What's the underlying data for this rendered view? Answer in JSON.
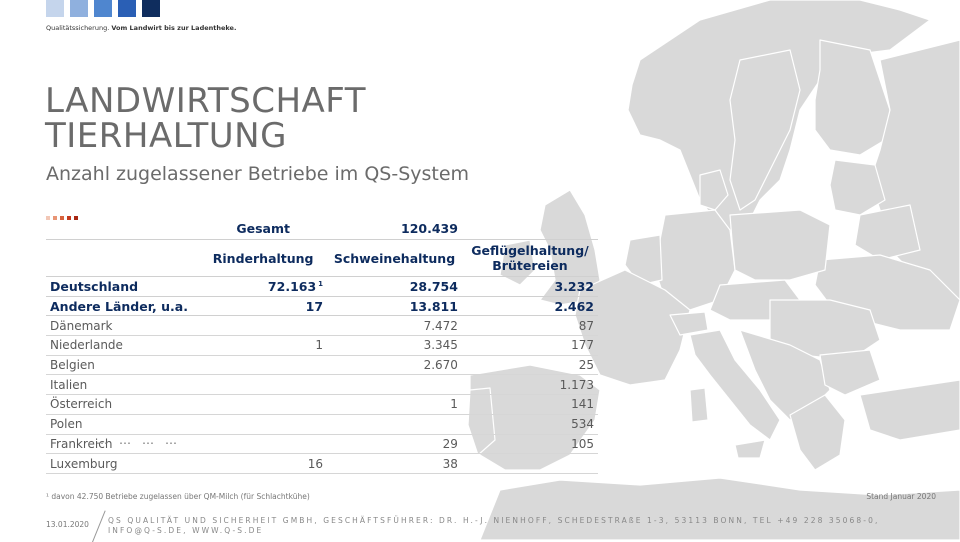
{
  "logo": {
    "colors": [
      "#c5d5ec",
      "#8fb0de",
      "#4f86cf",
      "#2a5fb5",
      "#0f2d5e"
    ],
    "tagline_normal": "Qualitätssicherung. ",
    "tagline_bold": "Vom Landwirt bis zur Ladentheke."
  },
  "title_line1": "LANDWIRTSCHAFT",
  "title_line2": "TIERHALTUNG",
  "subtitle": "Anzahl zugelassener Betriebe im QS-System",
  "accent_dots": [
    "#f2c7b6",
    "#e89575",
    "#d8623c",
    "#c43a1f",
    "#a82713"
  ],
  "table": {
    "total_label": "Gesamt",
    "total_value": "120.439",
    "columns": [
      "Rinderhaltung",
      "Schweinehaltung",
      "Geflügelhaltung/",
      "Brütereien"
    ],
    "bold_rows": [
      {
        "country": "Deutschland",
        "rind": "72.163",
        "rind_note": "1",
        "schwein": "28.754",
        "gefluegel": "3.232"
      },
      {
        "country": "Andere Länder, u.a.",
        "rind": "17",
        "schwein": "13.811",
        "gefluegel": "2.462"
      }
    ],
    "rows": [
      {
        "country": "Dänemark",
        "rind": "",
        "schwein": "7.472",
        "gefluegel": "87"
      },
      {
        "country": "Niederlande",
        "rind": "1",
        "schwein": "3.345",
        "gefluegel": "177"
      },
      {
        "country": "Belgien",
        "rind": "",
        "schwein": "2.670",
        "gefluegel": "25"
      },
      {
        "country": "Italien",
        "rind": "",
        "schwein": "",
        "gefluegel": "1.173"
      },
      {
        "country": "Österreich",
        "rind": "",
        "schwein": "1",
        "gefluegel": "141"
      },
      {
        "country": "Polen",
        "rind": "",
        "schwein": "",
        "gefluegel": "534"
      },
      {
        "country": "Frankreich",
        "rind": "",
        "schwein": "29",
        "gefluegel": "105"
      },
      {
        "country": "Luxemburg",
        "rind": "16",
        "schwein": "38",
        "gefluegel": ""
      }
    ],
    "ellipsis": "…"
  },
  "footnote": "¹ davon 42.750 Betriebe zugelassen über QM-Milch (für Schlachtkühe)",
  "stand": "Stand Januar 2020",
  "date": "13.01.2020",
  "company": "QS QUALITÄT UND SICHERHEIT GMBH, GESCHÄFTSFÜHRER: DR. H.-J. NIENHOFF, SCHEDESTRAßE 1-3, 53113 BONN, TEL +49 228 35068-0, INFO@Q-S.DE, WWW.Q-S.DE",
  "colors": {
    "map_land": "#d9d9d9",
    "map_border": "#ffffff",
    "navy": "#0d2b5e"
  }
}
